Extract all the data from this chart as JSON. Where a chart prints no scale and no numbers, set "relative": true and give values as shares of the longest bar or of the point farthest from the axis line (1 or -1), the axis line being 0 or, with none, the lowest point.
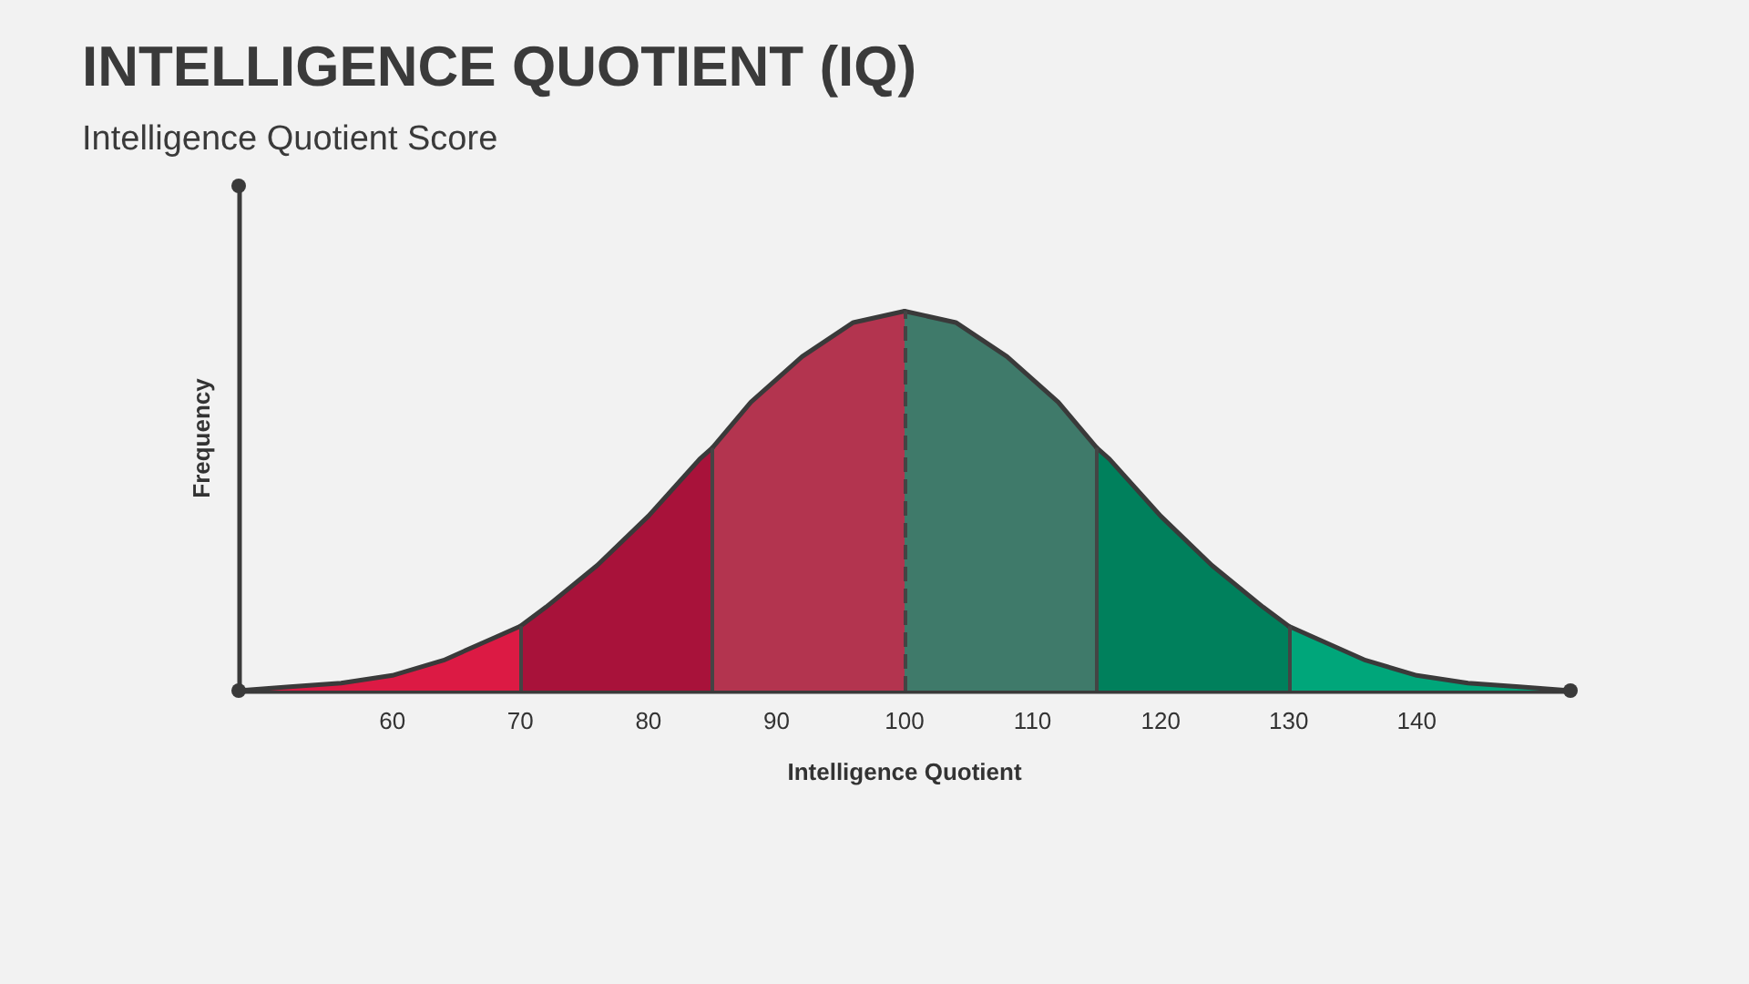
{
  "chart_data": {
    "type": "area",
    "title": "INTELLIGENCE QUOTIENT (IQ)",
    "subtitle": "Intelligence Quotient Score",
    "xlabel": "Intelligence Quotient",
    "ylabel": "Frequency",
    "relative": true,
    "xlim": [
      48,
      152
    ],
    "xticks": [
      60,
      70,
      80,
      90,
      100,
      110,
      120,
      130,
      140
    ],
    "tick_labels": "x",
    "grid": false,
    "marker": "none",
    "series": [
      {
        "color": "#dc1a44",
        "x": [
          48,
          52,
          56,
          60,
          64,
          68,
          70
        ],
        "values": [
          0,
          0.01,
          0.02,
          0.04,
          0.08,
          0.14,
          0.17
        ]
      },
      {
        "color": "#a8123a",
        "x": [
          70,
          72,
          76,
          80,
          84,
          85
        ],
        "values": [
          0.17,
          0.22,
          0.33,
          0.46,
          0.61,
          0.64
        ]
      },
      {
        "color": "#b3344f",
        "x": [
          85,
          88,
          92,
          96,
          100
        ],
        "values": [
          0.64,
          0.76,
          0.88,
          0.97,
          1
        ]
      },
      {
        "color": "#3f7a6a",
        "x": [
          100,
          104,
          108,
          112,
          115
        ],
        "values": [
          1,
          0.97,
          0.88,
          0.76,
          0.64
        ]
      },
      {
        "color": "#00805c",
        "x": [
          115,
          116,
          120,
          124,
          128,
          130
        ],
        "values": [
          0.64,
          0.61,
          0.46,
          0.33,
          0.22,
          0.17
        ]
      },
      {
        "color": "#00a67a",
        "x": [
          130,
          132,
          136,
          140,
          144,
          148,
          152
        ],
        "values": [
          0.17,
          0.14,
          0.08,
          0.04,
          0.02,
          0.01,
          0
        ]
      }
    ],
    "ref_lines": [
      {
        "axis": "x",
        "value": 70,
        "color": "#444444",
        "line_style": "solid"
      },
      {
        "axis": "x",
        "value": 85,
        "color": "#444444",
        "line_style": "solid"
      },
      {
        "axis": "x",
        "value": 100,
        "color": "#444444",
        "line_style": "dashed"
      },
      {
        "axis": "x",
        "value": 115,
        "color": "#444444",
        "line_style": "solid"
      },
      {
        "axis": "x",
        "value": 130,
        "color": "#444444",
        "line_style": "solid"
      }
    ]
  }
}
